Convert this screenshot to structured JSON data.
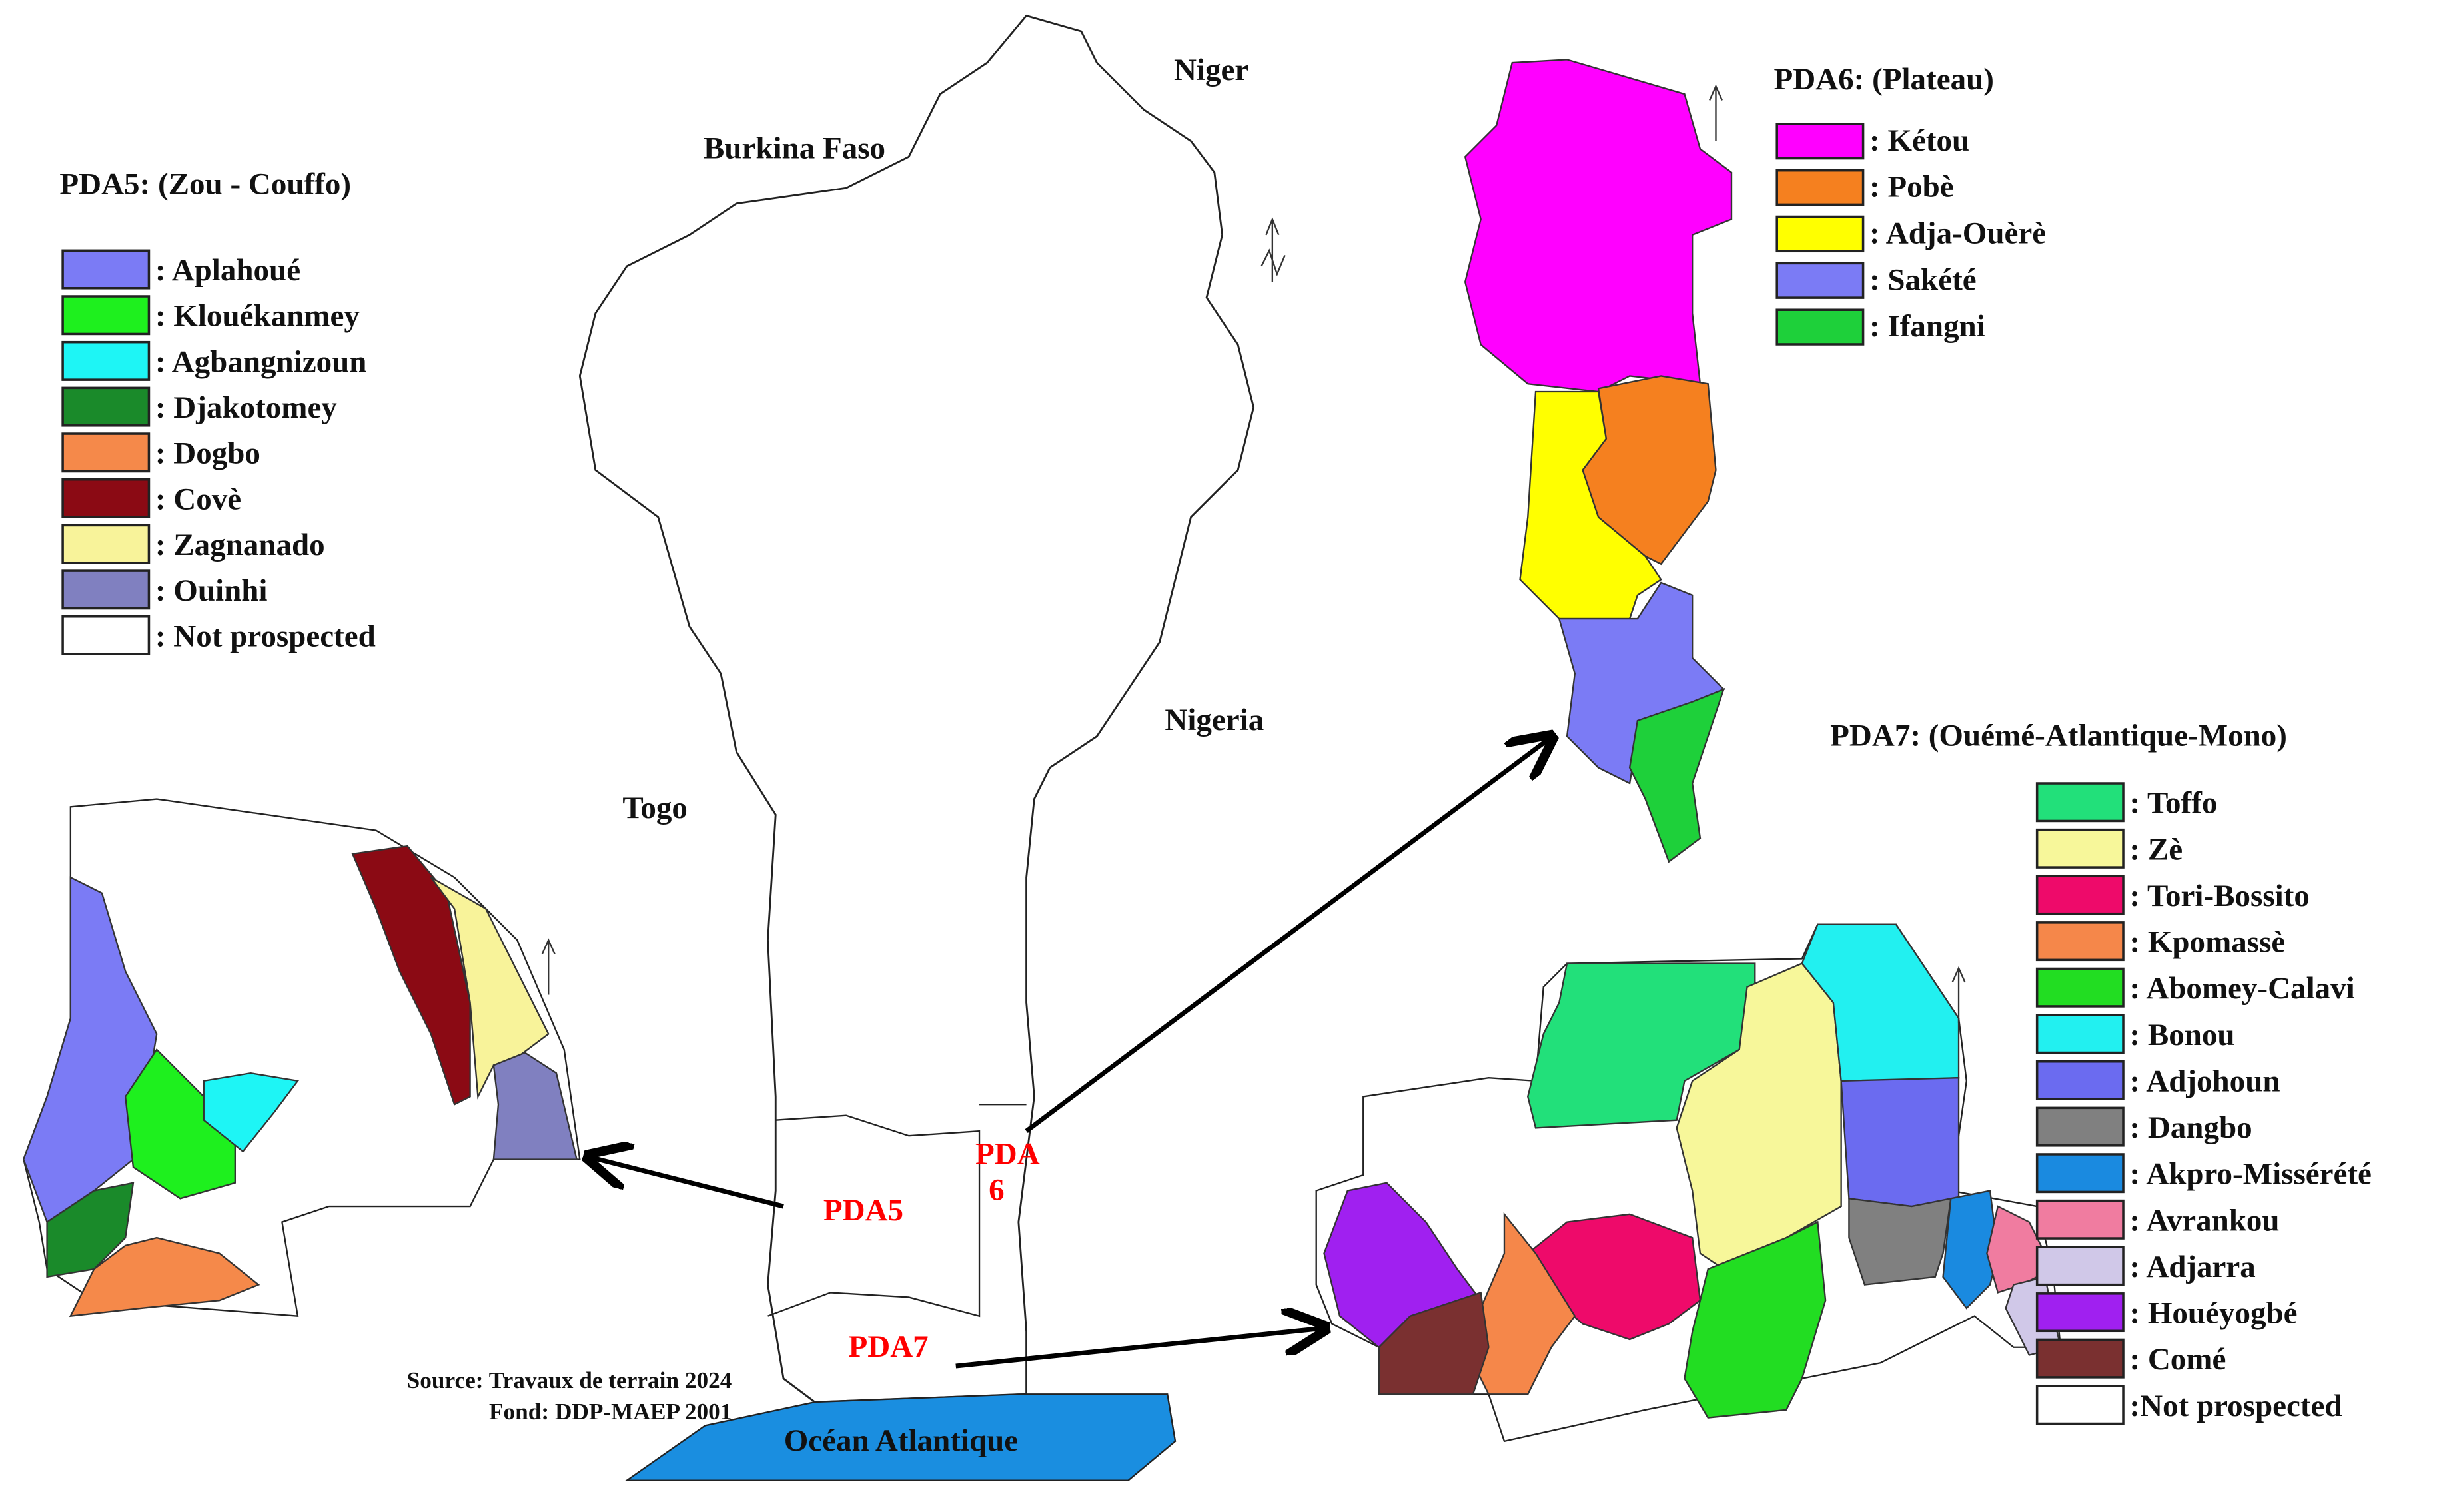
{
  "countries": {
    "niger": "Niger",
    "burkina": "Burkina Faso",
    "togo": "Togo",
    "nigeria": "Nigeria"
  },
  "ocean": "Océan Atlantique",
  "zones": {
    "pda5": "PDA5",
    "pda6": [
      "PDA",
      "6"
    ],
    "pda7": "PDA7"
  },
  "source": [
    "Source: Travaux de terrain 2024",
    "Fond: DDP-MAEP 2001"
  ],
  "legends": [
    {
      "title": "PDA5: (Zou - Couffo)",
      "items": [
        {
          "label": ": Aplahoué",
          "color": "#7b7bf5"
        },
        {
          "label": ": Klouékanmey",
          "color": "#1ef01e"
        },
        {
          "label": ": Agbangnizoun",
          "color": "#1ef5f5"
        },
        {
          "label": ": Djakotomey",
          "color": "#1a8a2a"
        },
        {
          "label": ": Dogbo",
          "color": "#f5894a"
        },
        {
          "label": ": Covè",
          "color": "#8b0a14"
        },
        {
          "label": ": Zagnanado",
          "color": "#f8f39a"
        },
        {
          "label": ": Ouinhi",
          "color": "#8080c0"
        },
        {
          "label": ": Not prospected",
          "color": "#ffffff"
        }
      ]
    },
    {
      "title": "PDA6: (Plateau)",
      "items": [
        {
          "label": ": Kétou",
          "color": "#ff00ff"
        },
        {
          "label": ": Pobè",
          "color": "#f5801f"
        },
        {
          "label": ": Adja-Ouèrè",
          "color": "#ffff00"
        },
        {
          "label": ": Sakété",
          "color": "#7b7bf5"
        },
        {
          "label": ": Ifangni",
          "color": "#1ed03a"
        }
      ]
    },
    {
      "title": "PDA7: (Ouémé-Atlantique-Mono)",
      "items": [
        {
          "label": ": Toffo",
          "color": "#22e07a"
        },
        {
          "label": ": Zè",
          "color": "#f7f79a"
        },
        {
          "label": ": Tori-Bossito",
          "color": "#ee0a6a"
        },
        {
          "label": ": Kpomassè",
          "color": "#f5874a"
        },
        {
          "label": ": Abomey-Calavi",
          "color": "#22dd22"
        },
        {
          "label": ": Bonou",
          "color": "#22f0f0"
        },
        {
          "label": ": Adjohoun",
          "color": "#6b6bf0"
        },
        {
          "label": ": Dangbo",
          "color": "#808080"
        },
        {
          "label": ": Akpro-Missérété",
          "color": "#1a8ae0"
        },
        {
          "label": ": Avrankou",
          "color": "#f07ca0"
        },
        {
          "label": ": Adjarra",
          "color": "#d0c8e8"
        },
        {
          "label": ": Houéyogbé",
          "color": "#a020f0"
        },
        {
          "label": ": Comé",
          "color": "#7a3030"
        },
        {
          "label": ":Not prospected",
          "color": "#ffffff"
        }
      ]
    }
  ]
}
